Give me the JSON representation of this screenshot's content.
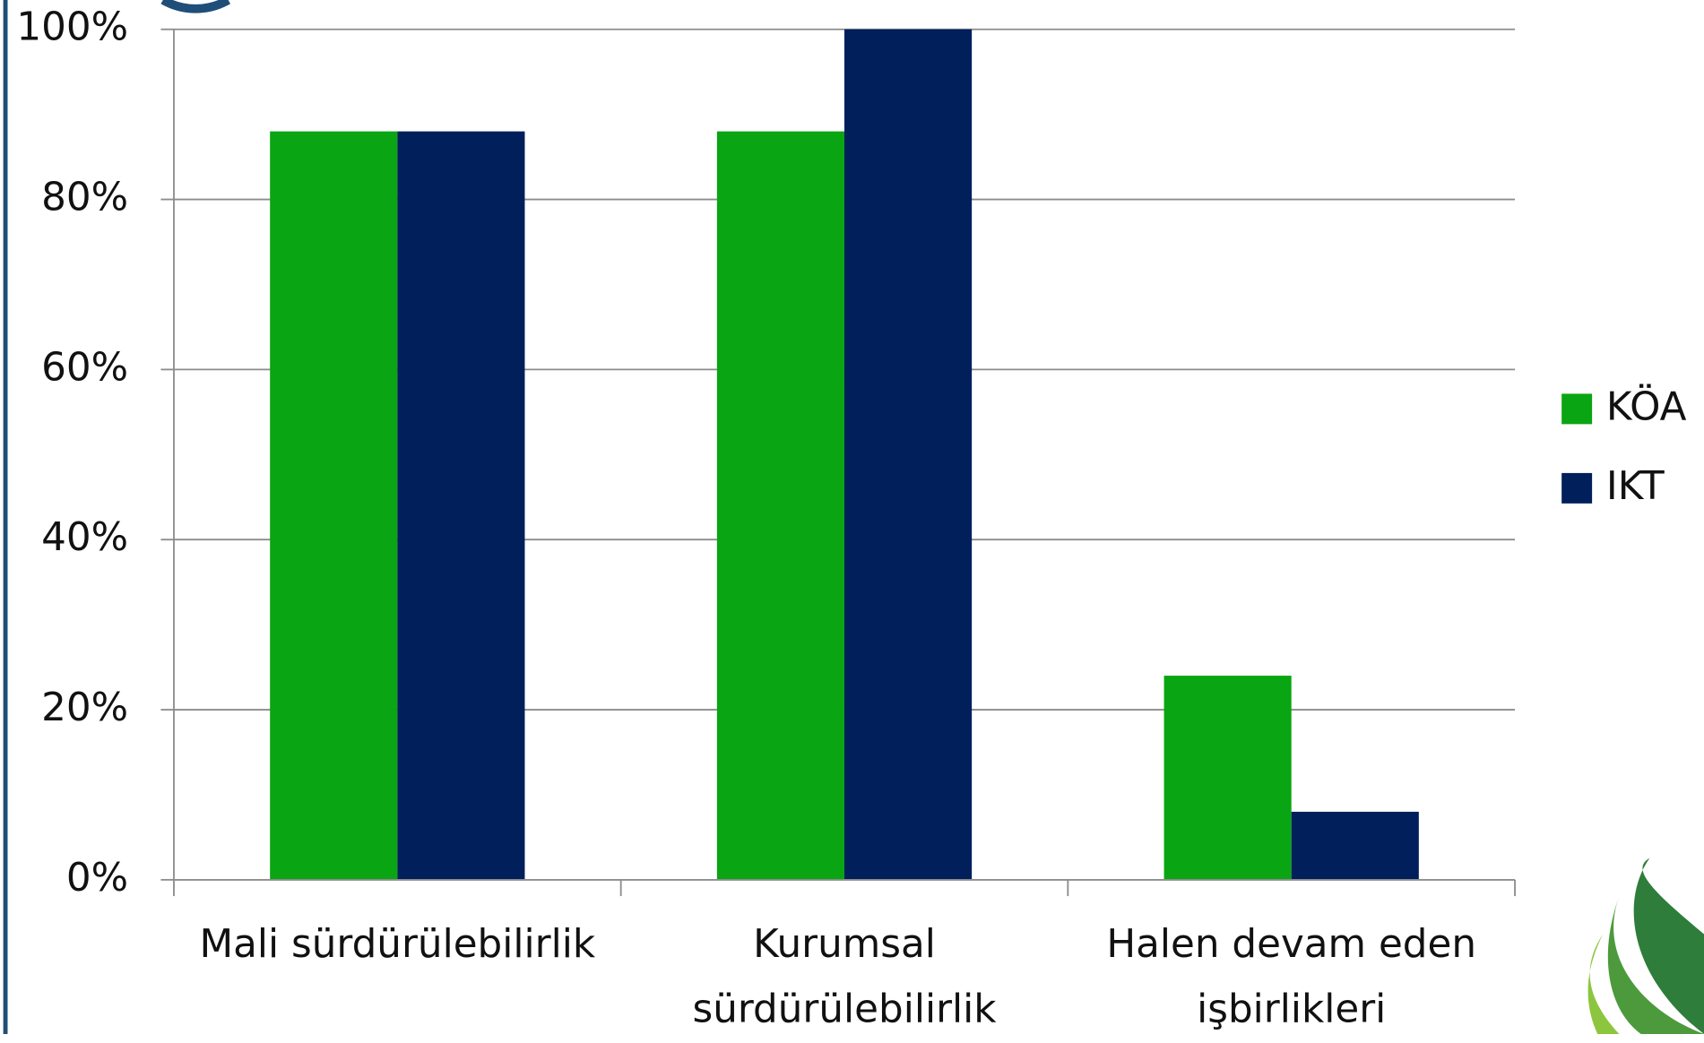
{
  "chart_data": {
    "type": "bar",
    "categories": [
      "Mali sürdürülebilirlik",
      "Kurumsal sürdürülebilirlik",
      "Halen devam eden işbirlikleri"
    ],
    "series": [
      {
        "name": "KÖA",
        "color": "#0aa512",
        "values": [
          88,
          88,
          24
        ]
      },
      {
        "name": "IKT",
        "color": "#001f5b",
        "values": [
          88,
          100,
          8
        ]
      }
    ],
    "ylim": [
      0,
      100
    ],
    "yticks": [
      {
        "value": 0,
        "label": "0%"
      },
      {
        "value": 20,
        "label": "20%"
      },
      {
        "value": 40,
        "label": "40%"
      },
      {
        "value": 60,
        "label": "60%"
      },
      {
        "value": 80,
        "label": "80%"
      },
      {
        "value": 100,
        "label": "100%"
      }
    ],
    "grid": true,
    "legend": "right"
  }
}
